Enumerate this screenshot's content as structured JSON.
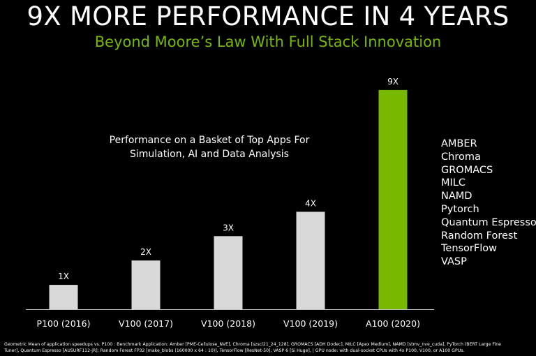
{
  "header": {
    "title": "9X MORE PERFORMANCE IN 4 YEARS",
    "subtitle": "Beyond Moore’s Law With Full Stack Innovation"
  },
  "description": {
    "line1": "Performance on a Basket of Top Apps For",
    "line2": "Simulation, AI and Data Analysis"
  },
  "apps": [
    "AMBER",
    "Chroma",
    "GROMACS",
    "MILC",
    "NAMD",
    "Pytorch",
    "Quantum Espresso",
    "Random Forest",
    "TensorFlow",
    "VASP"
  ],
  "footnote": "Geometric Mean of application speedups vs. P100 : Benchmark Application: Amber [PME-Cellulose_NVE], Chroma [szscl21_24_128], GROMACS  [ADH Dodec], MILC [Apex Medium], NAMD [stmv_nve_cuda], PyTorch (BERT Large Fine Tuner],  Quantum Espresso [AUSURF112-jR]; Random Forest FP32 [make_blobs (160000 x 64 : 10)], TensorFlow [ResNet-50], VASP 6  [Si Huge], | GPU node: with dual-socket CPUs with 4x P100, V100, or A100 GPUs.",
  "colors": {
    "background": "#000000",
    "accent": "#76b900",
    "bar_default": "#d9d9d9",
    "bar_highlight": "#76b900",
    "axis": "#bfbfbf"
  },
  "chart_data": {
    "type": "bar",
    "categories": [
      "P100 (2016)",
      "V100 (2017)",
      "V100 (2018)",
      "V100 (2019)",
      "A100 (2020)"
    ],
    "values": [
      1,
      2,
      3,
      4,
      9
    ],
    "data_labels": [
      "1X",
      "2X",
      "3X",
      "4X",
      "9X"
    ],
    "highlight_index": 4,
    "ylim": [
      0,
      9
    ],
    "grid": false,
    "title": "",
    "xlabel": "",
    "ylabel": ""
  }
}
